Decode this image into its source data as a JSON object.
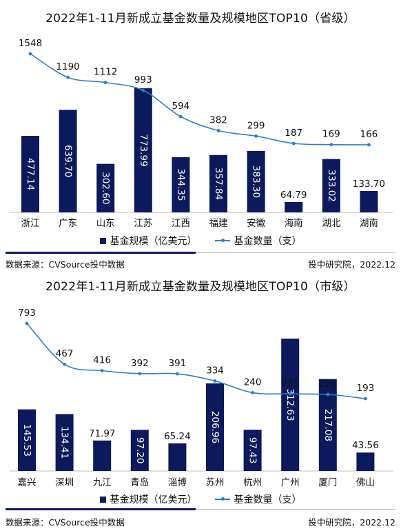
{
  "charts": [
    {
      "title": "2022年1-11月新成立基金数量及规模地区TOP10（省级）",
      "legend": {
        "bar": "基金规模（亿美元）",
        "line": "基金数量（支）"
      },
      "source": "数据来源：CVSource投中数据",
      "credit": "投中研究院，2022.12"
    },
    {
      "title": "2022年1-11月新成立基金数量及规模地区TOP10（市级）",
      "legend": {
        "bar": "基金规模（亿美元）",
        "line": "基金数量（支）"
      },
      "source": "数据来源：CVSource投中数据",
      "credit": "投中研究院，2022.12"
    }
  ],
  "chart_data": [
    {
      "type": "bar",
      "title": "2022年1-11月新成立基金数量及规模地区TOP10（省级）",
      "categories": [
        "浙江",
        "广东",
        "山东",
        "江苏",
        "江西",
        "福建",
        "安徽",
        "海南",
        "湖北",
        "湖南"
      ],
      "series": [
        {
          "name": "基金规模（亿美元）",
          "type": "bar",
          "values": [
            477.14,
            639.7,
            302.6,
            773.99,
            344.35,
            357.84,
            383.3,
            64.79,
            333.02,
            133.7
          ]
        },
        {
          "name": "基金数量（支）",
          "type": "line",
          "values": [
            1548,
            1190,
            1112,
            993,
            594,
            382,
            299,
            187,
            169,
            166
          ]
        }
      ],
      "bar_value_labels": [
        "477.14",
        "639.70",
        "302.60",
        "773.99",
        "344.35",
        "357.84",
        "383.30",
        "64.79",
        "333.02",
        "133.70"
      ],
      "line_value_labels": [
        "1548",
        "1190",
        "1112",
        "993",
        "594",
        "382",
        "299",
        "187",
        "169",
        "166"
      ],
      "legend_position": "bottom",
      "colors": {
        "bar": "#0b1a5c",
        "line": "#2b7fc8"
      }
    },
    {
      "type": "bar",
      "title": "2022年1-11月新成立基金数量及规模地区TOP10（市级）",
      "categories": [
        "嘉兴",
        "深圳",
        "九江",
        "青岛",
        "淄博",
        "苏州",
        "杭州",
        "广州",
        "厦门",
        "佛山"
      ],
      "series": [
        {
          "name": "基金规模（亿美元）",
          "type": "bar",
          "values": [
            145.53,
            134.41,
            71.97,
            97.2,
            65.24,
            206.96,
            97.43,
            312.63,
            217.08,
            43.56
          ]
        },
        {
          "name": "基金数量（支）",
          "type": "line",
          "values": [
            793,
            467,
            416,
            392,
            391,
            334,
            240,
            231,
            226,
            193
          ]
        }
      ],
      "bar_value_labels": [
        "145.53",
        "134.41",
        "71.97",
        "97.20",
        "65.24",
        "206.96",
        "97.43",
        "312.63",
        "217.08",
        "43.56"
      ],
      "line_value_labels": [
        "793",
        "467",
        "416",
        "392",
        "391",
        "334",
        "240",
        "231",
        "226",
        "193"
      ],
      "legend_position": "bottom",
      "colors": {
        "bar": "#0b1a5c",
        "line": "#2b7fc8"
      }
    }
  ]
}
